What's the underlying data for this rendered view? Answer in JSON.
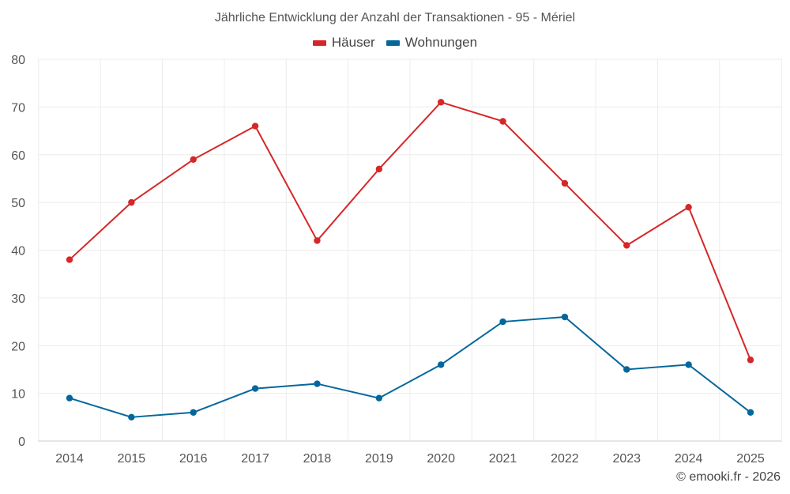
{
  "chart_data": {
    "type": "line",
    "title": "Jährliche Entwicklung der Anzahl der Transaktionen - 95 - Mériel",
    "xlabel": "",
    "ylabel": "",
    "ylim": [
      0,
      80
    ],
    "yticks": [
      0,
      10,
      20,
      30,
      40,
      50,
      60,
      70,
      80
    ],
    "grid": true,
    "legend_position": "top-center",
    "categories": [
      "2014",
      "2015",
      "2016",
      "2017",
      "2018",
      "2019",
      "2020",
      "2021",
      "2022",
      "2023",
      "2024",
      "2025"
    ],
    "series": [
      {
        "name": "Häuser",
        "color": "#d62728",
        "values": [
          38,
          50,
          59,
          66,
          42,
          57,
          71,
          67,
          54,
          41,
          49,
          17
        ]
      },
      {
        "name": "Wohnungen",
        "color": "#04679c",
        "values": [
          9,
          5,
          6,
          11,
          12,
          9,
          16,
          25,
          26,
          15,
          16,
          6
        ]
      }
    ]
  },
  "credit": "© emooki.fr - 2026"
}
